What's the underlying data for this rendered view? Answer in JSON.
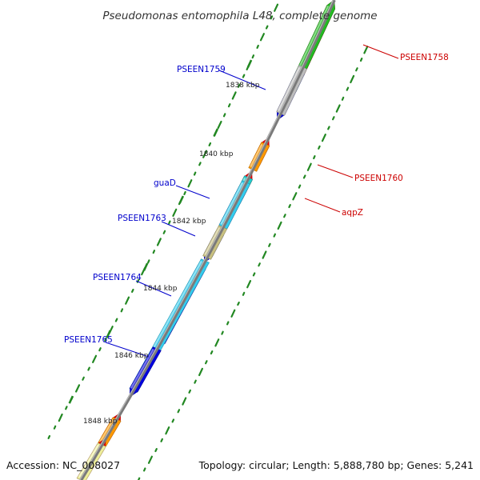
{
  "title": "Pseudomonas entomophila L48, complete genome",
  "footer": {
    "accession": "Accession: NC_008027",
    "topology": "Topology: circular; Length: 5,888,780 bp; Genes: 5,241"
  },
  "kbp_labels": [
    "1838 kbp",
    "1840 kbp",
    "1842 kbp",
    "1844 kbp",
    "1846 kbp",
    "1848 kbp"
  ],
  "gene_labels": [
    {
      "text": "PSEEN1759",
      "color": "#0000cc"
    },
    {
      "text": "guaD",
      "color": "#0000cc"
    },
    {
      "text": "PSEEN1763",
      "color": "#0000cc"
    },
    {
      "text": "PSEEN1764",
      "color": "#0000cc"
    },
    {
      "text": "PSEEN1765",
      "color": "#0000cc"
    },
    {
      "text": "PSEEN1758",
      "color": "#cc0000"
    },
    {
      "text": "PSEEN1760",
      "color": "#cc0000"
    },
    {
      "text": "aqpZ",
      "color": "#cc0000"
    }
  ],
  "colors": {
    "backbone": "#7a7a7a",
    "cds_minus": "#0000dd",
    "cds_plus": "#ee0000",
    "rna_gene": "#22bb22",
    "feature_cyan": "#33ccee",
    "feature_orange": "#ff9900",
    "feature_teal": "#22cccc",
    "feature_gray": "#bdbdbd",
    "feature_olive": "#c8c080",
    "feature_yellow": "#eeee99",
    "tick_dots": "#228822"
  }
}
